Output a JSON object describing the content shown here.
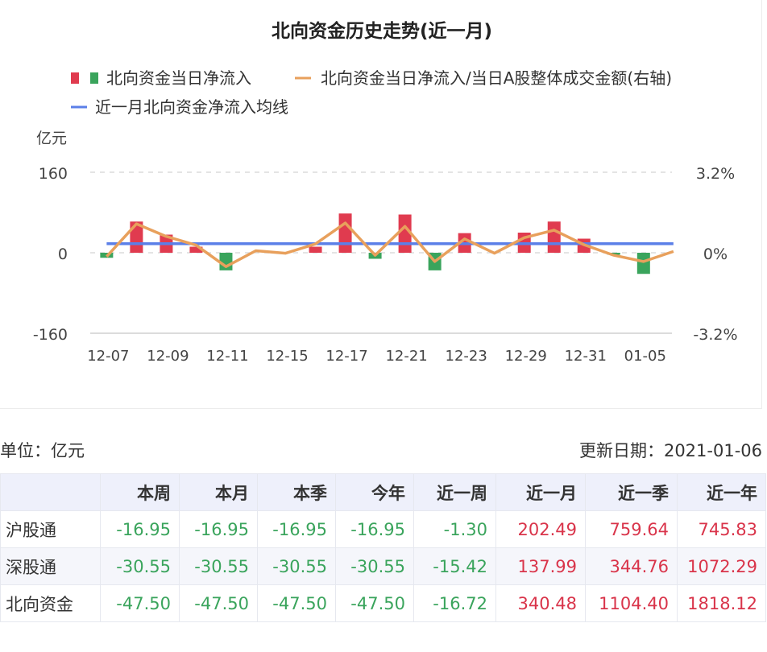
{
  "chart_data": {
    "type": "bar+line",
    "title": "北向资金历史走势(近一月)",
    "legend": {
      "items": [
        {
          "label": "北向资金当日净流入",
          "swatch": "bars",
          "colors": [
            "#e03b4f",
            "#3aa45c"
          ]
        },
        {
          "label": "北向资金当日净流入/当日A股整体成交金额(右轴)",
          "swatch": "line",
          "color": "#e8a05c"
        },
        {
          "label": "近一月北向资金净流入均线",
          "swatch": "line",
          "color": "#5b7fe8"
        }
      ],
      "position": "top"
    },
    "y_left": {
      "unit": "亿元",
      "ticks": [
        "160",
        "0",
        "-160"
      ],
      "range": [
        -160,
        160
      ]
    },
    "y_right": {
      "ticks": [
        "3.2%",
        "0%",
        "-3.2%"
      ],
      "range": [
        -3.2,
        3.2
      ]
    },
    "x_tick_labels": [
      "12-07",
      "12-09",
      "12-11",
      "12-15",
      "12-17",
      "12-21",
      "12-23",
      "12-29",
      "12-31",
      "01-05"
    ],
    "grid": "dashed-horizontal",
    "dates": [
      "12-07",
      "12-08",
      "12-09",
      "12-10",
      "12-11",
      "12-14",
      "12-15",
      "12-16",
      "12-17",
      "12-18",
      "12-21",
      "12-22",
      "12-23",
      "12-24",
      "12-29",
      "12-30",
      "12-31",
      "01-04",
      "01-05",
      "01-06"
    ],
    "net_inflow": [
      -10,
      62,
      36,
      12,
      -35,
      0,
      0,
      12,
      78,
      -12,
      76,
      -35,
      39,
      0,
      40,
      62,
      28,
      -4,
      -42,
      0
    ],
    "ratio_pct": [
      -0.15,
      1.15,
      0.65,
      0.3,
      -0.55,
      0.08,
      -0.02,
      0.35,
      1.18,
      -0.1,
      1.05,
      -0.35,
      0.55,
      -0.02,
      0.6,
      0.9,
      0.32,
      -0.1,
      -0.35,
      0.05
    ],
    "avg_line": 18,
    "colors": {
      "positive": "#e03b4f",
      "negative": "#3aa45c",
      "ratio": "#e8a05c",
      "avg": "#5b7fe8"
    }
  },
  "info": {
    "unit_label": "单位：亿元",
    "update_label": "更新日期：2021-01-06"
  },
  "table": {
    "headers": [
      "",
      "本周",
      "本月",
      "本季",
      "今年",
      "近一周",
      "近一月",
      "近一季",
      "近一年"
    ],
    "rows": [
      {
        "name": "沪股通",
        "values": [
          "-16.95",
          "-16.95",
          "-16.95",
          "-16.95",
          "-1.30",
          "202.49",
          "759.64",
          "745.83"
        ]
      },
      {
        "name": "深股通",
        "values": [
          "-30.55",
          "-30.55",
          "-30.55",
          "-30.55",
          "-15.42",
          "137.99",
          "344.76",
          "1072.29"
        ]
      },
      {
        "name": "北向资金",
        "values": [
          "-47.50",
          "-47.50",
          "-47.50",
          "-47.50",
          "-16.72",
          "340.48",
          "1104.40",
          "1818.12"
        ]
      }
    ]
  }
}
